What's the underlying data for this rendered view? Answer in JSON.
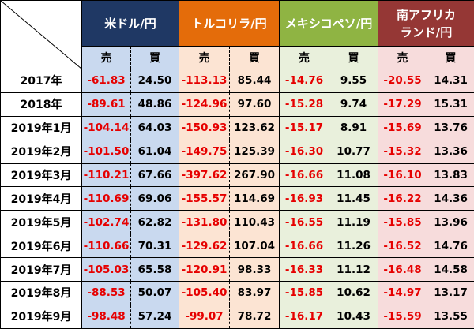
{
  "currencies": [
    {
      "key": "usd",
      "name": "米ドル/円"
    },
    {
      "key": "try",
      "name": "トルコリラ/円"
    },
    {
      "key": "mxn",
      "name": "メキシコペソ/円"
    },
    {
      "key": "zar",
      "name": "南アフリカ\nランド/円"
    }
  ],
  "sub_headers": {
    "sell": "売",
    "buy": "買"
  },
  "rows": [
    {
      "label": "2017年",
      "usd": [
        "-61.83",
        "24.50"
      ],
      "try": [
        "-113.13",
        "85.44"
      ],
      "mxn": [
        "-14.76",
        "9.55"
      ],
      "zar": [
        "-20.55",
        "14.31"
      ]
    },
    {
      "label": "2018年",
      "usd": [
        "-89.61",
        "48.86"
      ],
      "try": [
        "-124.96",
        "97.60"
      ],
      "mxn": [
        "-15.28",
        "9.74"
      ],
      "zar": [
        "-17.29",
        "15.31"
      ]
    },
    {
      "label": "2019年1月",
      "usd": [
        "-104.14",
        "64.03"
      ],
      "try": [
        "-150.93",
        "123.62"
      ],
      "mxn": [
        "-15.17",
        "8.91"
      ],
      "zar": [
        "-15.69",
        "13.76"
      ]
    },
    {
      "label": "2019年2月",
      "usd": [
        "-101.50",
        "61.04"
      ],
      "try": [
        "-149.75",
        "125.39"
      ],
      "mxn": [
        "-16.30",
        "10.77"
      ],
      "zar": [
        "-15.32",
        "13.36"
      ]
    },
    {
      "label": "2019年3月",
      "usd": [
        "-110.21",
        "67.66"
      ],
      "try": [
        "-397.62",
        "267.90"
      ],
      "mxn": [
        "-16.66",
        "11.08"
      ],
      "zar": [
        "-16.10",
        "13.83"
      ]
    },
    {
      "label": "2019年4月",
      "usd": [
        "-110.69",
        "69.06"
      ],
      "try": [
        "-155.57",
        "114.69"
      ],
      "mxn": [
        "-16.93",
        "11.45"
      ],
      "zar": [
        "-16.22",
        "14.36"
      ]
    },
    {
      "label": "2019年5月",
      "usd": [
        "-102.74",
        "62.82"
      ],
      "try": [
        "-131.80",
        "110.43"
      ],
      "mxn": [
        "-16.55",
        "11.19"
      ],
      "zar": [
        "-15.85",
        "13.96"
      ]
    },
    {
      "label": "2019年6月",
      "usd": [
        "-110.66",
        "70.31"
      ],
      "try": [
        "-129.62",
        "107.04"
      ],
      "mxn": [
        "-16.66",
        "11.26"
      ],
      "zar": [
        "-16.52",
        "14.76"
      ]
    },
    {
      "label": "2019年7月",
      "usd": [
        "-105.03",
        "65.58"
      ],
      "try": [
        "-120.91",
        "98.33"
      ],
      "mxn": [
        "-16.33",
        "11.12"
      ],
      "zar": [
        "-16.48",
        "14.58"
      ]
    },
    {
      "label": "2019年8月",
      "usd": [
        "-88.53",
        "50.07"
      ],
      "try": [
        "-105.40",
        "83.97"
      ],
      "mxn": [
        "-15.85",
        "10.62"
      ],
      "zar": [
        "-14.97",
        "13.17"
      ]
    },
    {
      "label": "2019年9月",
      "usd": [
        "-98.48",
        "57.24"
      ],
      "try": [
        "-99.07",
        "78.72"
      ],
      "mxn": [
        "-16.17",
        "10.43"
      ],
      "zar": [
        "-15.59",
        "13.55"
      ]
    }
  ]
}
